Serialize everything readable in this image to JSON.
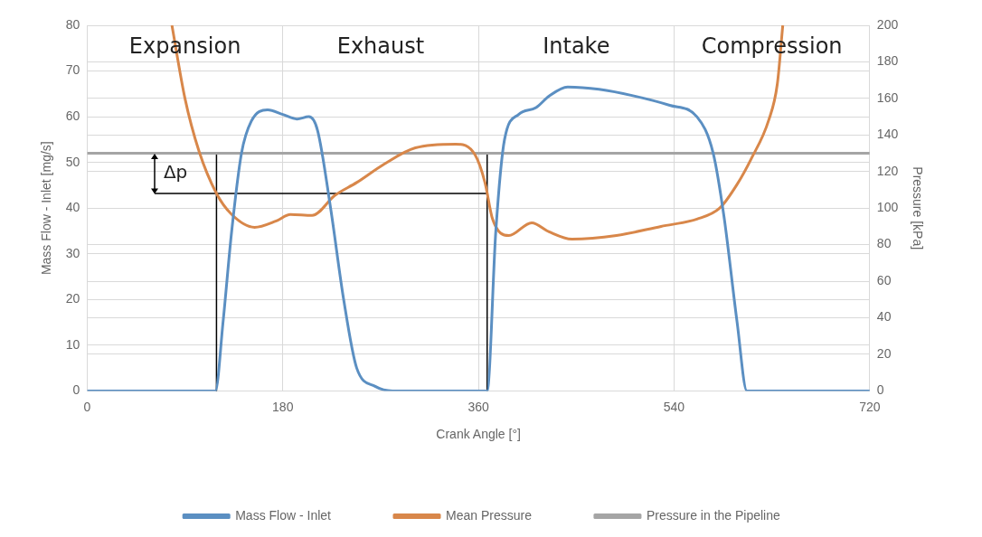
{
  "chart_data": {
    "type": "line",
    "xlabel": "Crank Angle [°]",
    "ylabel": "Mass Flow - Inlet [mg/s]",
    "y2label": "Pressure [kPa]",
    "xlim": [
      0,
      720
    ],
    "xticks": [
      0,
      180,
      360,
      540,
      720
    ],
    "ylim": [
      0,
      80
    ],
    "yticks": [
      0,
      10,
      20,
      30,
      40,
      50,
      60,
      70,
      80
    ],
    "y2lim": [
      0,
      200
    ],
    "y2ticks": [
      0,
      20,
      40,
      60,
      80,
      100,
      120,
      140,
      160,
      180,
      200
    ],
    "grid": true,
    "legend": "bottom",
    "marker": "none",
    "annotations": [
      "Expansion",
      "Exhaust",
      "Intake",
      "Compression",
      "Δp"
    ],
    "series": [
      {
        "name": "Mass Flow - Inlet",
        "color": "#5b8fc2",
        "x": [
          0,
          118,
          125,
          133,
          142,
          151,
          166,
          180,
          193,
          204,
          212,
          224,
          236,
          248,
          265,
          281,
          368,
          376,
          384,
          397,
          413,
          425,
          442,
          471,
          504,
          536,
          561,
          576,
          586,
          598,
          607,
          720
        ],
        "values": [
          0,
          0,
          15,
          35,
          52,
          59,
          61.5,
          60.5,
          59.5,
          60,
          57,
          40,
          20,
          5,
          1,
          0,
          0,
          35,
          55,
          60.5,
          62,
          64.5,
          66.5,
          66,
          64.5,
          62.5,
          60,
          52,
          38,
          15,
          0,
          0
        ]
      },
      {
        "name": "Mean Pressure",
        "color": "#d8874a",
        "axis": "y2",
        "x": [
          78,
          90,
          103,
          119,
          133,
          154,
          174,
          187,
          207,
          228,
          248,
          273,
          302,
          339,
          357,
          366,
          373,
          388,
          409,
          425,
          446,
          487,
          528,
          561,
          582,
          598,
          611,
          627,
          635,
          640
        ],
        "values": [
          200,
          160,
          131,
          108,
          96.5,
          89.5,
          93,
          96.5,
          96,
          107,
          114,
          124,
          133,
          135,
          129,
          114,
          94,
          85,
          92,
          87,
          83,
          85,
          90,
          94,
          100,
          113,
          127,
          148,
          168,
          200
        ]
      },
      {
        "name": "Pressure in the Pipeline",
        "color": "#a5a5a5",
        "axis": "y2",
        "x": [
          0,
          720
        ],
        "values": [
          130,
          130
        ]
      },
      {
        "color": "#000000",
        "axis": "y2",
        "x": [
          62,
          119,
          119,
          119,
          119,
          368,
          368,
          368
        ],
        "values": [
          108,
          108,
          130,
          0,
          108,
          108,
          130,
          0
        ]
      }
    ]
  }
}
